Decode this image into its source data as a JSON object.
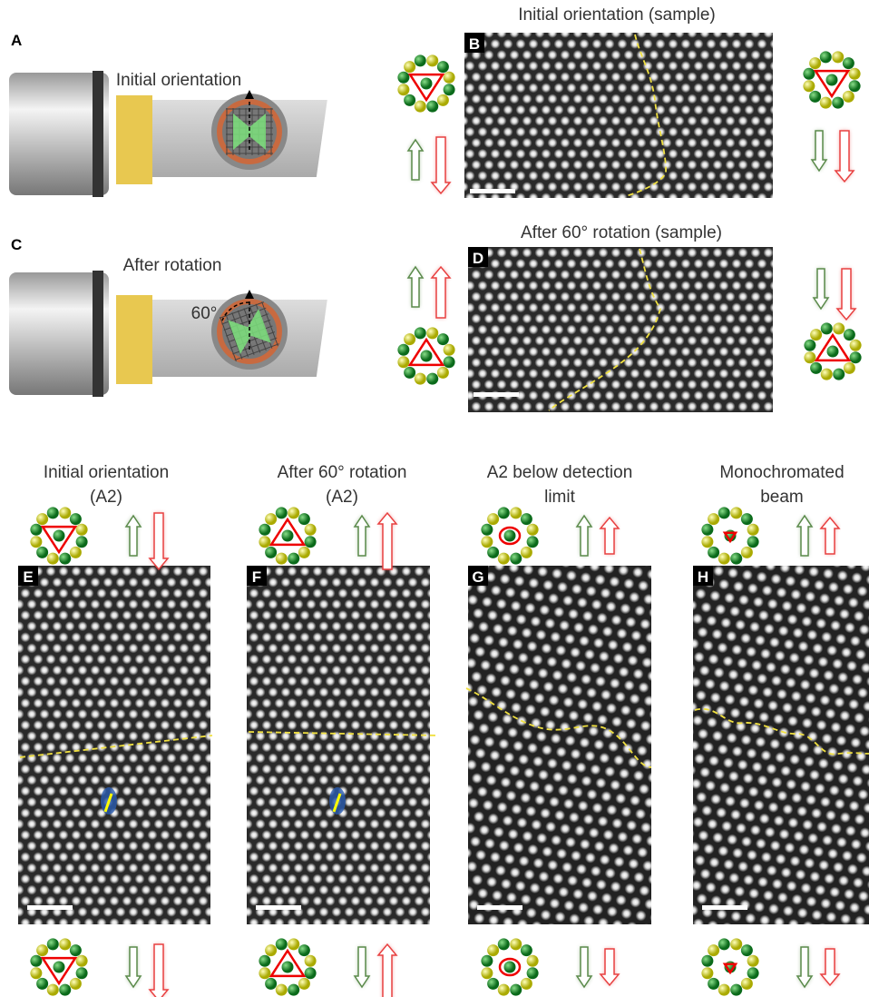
{
  "panels": [
    {
      "label": "A",
      "title": [
        "Initial orientation"
      ]
    },
    {
      "label": "B",
      "title": [
        "Initial orientation (sample)"
      ]
    },
    {
      "label": "C",
      "title": [
        "After rotation"
      ],
      "annotation": "60°"
    },
    {
      "label": "D",
      "title": [
        "After 60° rotation (sample)"
      ]
    },
    {
      "label": "E",
      "title": [
        "Initial orientation",
        "(A2)"
      ]
    },
    {
      "label": "F",
      "title": [
        "After 60° rotation",
        "(A2)"
      ]
    },
    {
      "label": "G",
      "title": [
        "A2 below detection",
        "limit"
      ]
    },
    {
      "label": "H",
      "title": [
        "Monochromated",
        "beam"
      ]
    }
  ]
}
